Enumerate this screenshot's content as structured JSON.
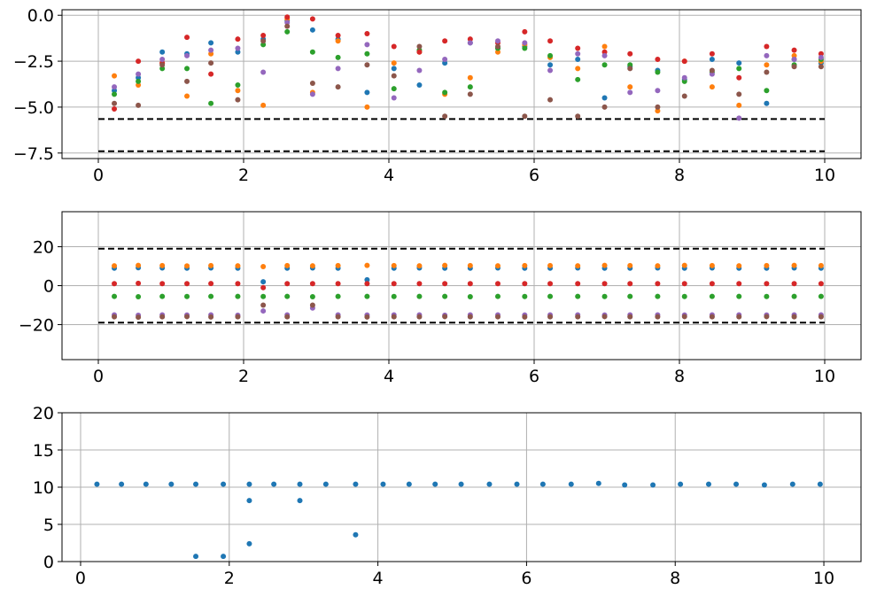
{
  "chart_data": [
    {
      "type": "scatter",
      "xlim": [
        -0.5,
        10.5
      ],
      "ylim": [
        -7.8,
        0.3
      ],
      "xticks": [
        "0",
        "2",
        "4",
        "6",
        "8",
        "10"
      ],
      "yticks": [
        "0.0",
        "−2.5",
        "−5.0",
        "−7.5"
      ],
      "grid": true,
      "hlines": [
        -5.65,
        -7.4
      ],
      "palette": [
        "#1f77b4",
        "#ff7f0e",
        "#2ca02c",
        "#d62728",
        "#9467bd",
        "#8c564b"
      ],
      "x": [
        0.22,
        0.55,
        0.88,
        1.22,
        1.55,
        1.92,
        2.27,
        2.6,
        2.95,
        3.3,
        3.7,
        4.07,
        4.42,
        4.77,
        5.12,
        5.5,
        5.87,
        6.22,
        6.6,
        6.97,
        7.32,
        7.7,
        8.07,
        8.45,
        8.82,
        9.2,
        9.58,
        9.95
      ],
      "series": [
        {
          "values": [
            -4.1,
            -3.4,
            -2.0,
            -2.1,
            -1.5,
            -2.0,
            -1.3,
            -0.3,
            -0.8,
            -1.3,
            -4.2,
            -2.9,
            -3.8,
            -2.6,
            -1.5,
            -1.8,
            -1.7,
            -2.7,
            -2.4,
            -4.5,
            -2.8,
            -3.0,
            -3.5,
            -2.4,
            -2.6,
            -4.8,
            -2.4,
            -2.6
          ]
        },
        {
          "values": [
            -3.3,
            -3.8,
            -2.6,
            -4.4,
            -2.1,
            -4.1,
            -4.9,
            -0.2,
            -4.2,
            -1.4,
            -5.0,
            -2.6,
            -2.0,
            -4.3,
            -3.4,
            -2.0,
            -1.6,
            -2.3,
            -2.9,
            -1.7,
            -3.9,
            -5.2,
            -2.5,
            -3.9,
            -4.9,
            -2.7,
            -2.2,
            -2.5
          ]
        },
        {
          "values": [
            -4.3,
            -3.6,
            -2.9,
            -2.9,
            -4.8,
            -3.8,
            -1.6,
            -0.9,
            -2.0,
            -2.3,
            -2.1,
            -4.0,
            -1.9,
            -4.2,
            -3.9,
            -1.8,
            -1.8,
            -2.2,
            -3.5,
            -2.7,
            -2.7,
            -3.1,
            -3.6,
            -3.1,
            -2.9,
            -4.1,
            -2.7,
            -2.4
          ]
        },
        {
          "values": [
            -5.1,
            -2.5,
            -2.6,
            -1.2,
            -3.2,
            -1.3,
            -1.1,
            -0.1,
            -0.2,
            -1.1,
            -1.0,
            -1.7,
            -2.0,
            -1.4,
            -1.3,
            -1.5,
            -0.9,
            -1.4,
            -1.8,
            -2.0,
            -2.1,
            -2.4,
            -2.5,
            -2.1,
            -3.4,
            -1.7,
            -1.9,
            -2.1
          ]
        },
        {
          "values": [
            -3.9,
            -3.2,
            -2.4,
            -2.2,
            -1.9,
            -1.8,
            -3.1,
            -0.4,
            -4.3,
            -2.9,
            -1.6,
            -4.5,
            -3.0,
            -2.4,
            -1.5,
            -1.4,
            -1.5,
            -3.0,
            -2.1,
            -2.2,
            -4.2,
            -4.1,
            -3.4,
            -3.2,
            -5.6,
            -2.2,
            -2.4,
            -2.3
          ]
        },
        {
          "values": [
            -4.8,
            -4.9,
            -2.7,
            -3.6,
            -2.6,
            -4.6,
            -1.4,
            -0.6,
            -3.7,
            -3.9,
            -2.7,
            -3.3,
            -1.7,
            -5.5,
            -4.3,
            -1.7,
            -5.5,
            -4.6,
            -5.5,
            -5.0,
            -2.9,
            -5.0,
            -4.4,
            -3.0,
            -4.3,
            -3.1,
            -2.8,
            -2.8
          ]
        }
      ]
    },
    {
      "type": "scatter",
      "xlim": [
        -0.5,
        10.5
      ],
      "ylim": [
        -38,
        38
      ],
      "xticks": [
        "0",
        "2",
        "4",
        "6",
        "8",
        "10"
      ],
      "yticks": [
        "20",
        "0",
        "−20"
      ],
      "grid": true,
      "hlines": [
        19,
        -19
      ],
      "palette": [
        "#1f77b4",
        "#ff7f0e",
        "#2ca02c",
        "#d62728",
        "#9467bd",
        "#8c564b"
      ],
      "x": [
        0.22,
        0.55,
        0.88,
        1.22,
        1.55,
        1.92,
        2.27,
        2.6,
        2.95,
        3.3,
        3.7,
        4.07,
        4.42,
        4.77,
        5.12,
        5.5,
        5.87,
        6.22,
        6.6,
        6.97,
        7.32,
        7.7,
        8.07,
        8.45,
        8.82,
        9.2,
        9.58,
        9.95
      ],
      "series": [
        {
          "values": [
            9.0,
            9.2,
            9.1,
            9.0,
            9.1,
            9.0,
            2.0,
            9.0,
            9.1,
            9.0,
            3.0,
            9.0,
            9.1,
            9.0,
            9.0,
            9.1,
            9.0,
            9.0,
            9.1,
            9.0,
            9.0,
            9.1,
            9.0,
            9.1,
            9.0,
            9.0,
            9.1,
            9.0
          ]
        },
        {
          "values": [
            10.2,
            10.4,
            10.3,
            10.1,
            10.3,
            10.2,
            9.8,
            10.3,
            10.2,
            10.3,
            10.4,
            10.3,
            10.2,
            10.4,
            10.3,
            10.2,
            10.3,
            10.3,
            10.2,
            10.4,
            10.3,
            10.2,
            10.4,
            10.3,
            10.2,
            10.3,
            10.4,
            10.3
          ]
        },
        {
          "values": [
            -5.5,
            -5.7,
            -5.5,
            -5.6,
            -5.5,
            -5.5,
            -5.6,
            -5.5,
            -5.7,
            -5.5,
            -5.5,
            -5.6,
            -5.5,
            -5.5,
            -5.7,
            -5.5,
            -5.6,
            -5.5,
            -5.5,
            -5.6,
            -5.5,
            -5.5,
            -5.6,
            -5.5,
            -5.5,
            -5.6,
            -5.5,
            -5.5
          ]
        },
        {
          "values": [
            1.0,
            1.2,
            1.0,
            1.0,
            1.1,
            1.0,
            -1.0,
            1.0,
            1.0,
            1.0,
            1.0,
            1.0,
            1.0,
            1.0,
            1.0,
            1.0,
            1.0,
            1.0,
            1.0,
            1.0,
            1.0,
            1.0,
            1.0,
            1.0,
            1.0,
            1.0,
            1.0,
            1.0
          ]
        },
        {
          "values": [
            -15.0,
            -15.2,
            -15.0,
            -15.1,
            -15.0,
            -15.2,
            -13.0,
            -15.0,
            -11.5,
            -15.0,
            -15.1,
            -15.0,
            -15.0,
            -15.2,
            -15.0,
            -15.0,
            -15.1,
            -15.0,
            -15.0,
            -15.1,
            -15.0,
            -15.0,
            -15.1,
            -15.0,
            -15.0,
            -15.1,
            -15.0,
            -15.0
          ]
        },
        {
          "values": [
            -16.0,
            -16.2,
            -16.0,
            -15.9,
            -16.1,
            -16.0,
            -10.0,
            -16.0,
            -10.0,
            -16.0,
            -16.1,
            -16.0,
            -16.0,
            -15.9,
            -16.0,
            -16.0,
            -16.1,
            -16.0,
            -16.0,
            -15.9,
            -16.0,
            -16.0,
            -15.9,
            -16.0,
            -16.0,
            -15.9,
            -16.0,
            -16.0
          ]
        }
      ]
    },
    {
      "type": "scatter",
      "xlim": [
        -0.25,
        10.5
      ],
      "ylim": [
        0,
        20
      ],
      "xticks": [
        "0",
        "2",
        "4",
        "6",
        "8",
        "10"
      ],
      "yticks": [
        "0",
        "5",
        "10",
        "15",
        "20"
      ],
      "grid": true,
      "hlines": [],
      "palette": [
        "#1f77b4"
      ],
      "x": [
        0.22,
        0.55,
        0.88,
        1.22,
        1.55,
        1.92,
        2.27,
        2.6,
        2.95,
        3.3,
        3.7,
        4.07,
        4.42,
        4.77,
        5.12,
        5.5,
        5.87,
        6.22,
        6.6,
        6.97,
        7.32,
        7.7,
        8.07,
        8.45,
        8.82,
        9.2,
        9.58,
        9.95
      ],
      "series": [
        {
          "values": [
            10.4,
            10.4,
            10.4,
            10.4,
            10.4,
            10.4,
            10.4,
            10.4,
            10.4,
            10.4,
            10.4,
            10.4,
            10.4,
            10.4,
            10.4,
            10.4,
            10.4,
            10.4,
            10.4,
            10.5,
            10.3,
            10.3,
            10.4,
            10.4,
            10.4,
            10.3,
            10.4,
            10.4
          ]
        },
        {
          "x": [
            1.55,
            1.92,
            2.27,
            2.27,
            2.95,
            3.7
          ],
          "values": [
            0.7,
            0.7,
            8.2,
            2.4,
            8.2,
            3.6
          ]
        }
      ]
    }
  ]
}
